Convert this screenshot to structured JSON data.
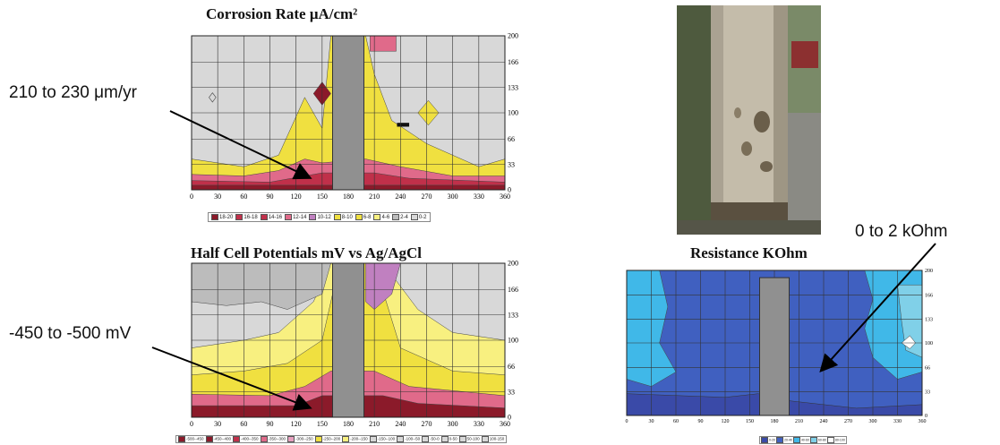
{
  "titles": {
    "corrosion": "Corrosion Rate μA/cm²",
    "halfcell": "Half Cell Potentials mV vs Ag/AgCl",
    "resistance": "Resistance KOhm"
  },
  "annotations": {
    "corrosion": "210 to 230 μm/yr",
    "halfcell": "-450 to -500 mV",
    "resistance": "0 to 2 kOhm"
  },
  "photo": {
    "description": "photo-of-corroded-column"
  },
  "colors": {
    "dark_red": "#8b1a2a",
    "red": "#c0304a",
    "pink": "#e06a8a",
    "light_pink": "#e8a0c0",
    "violet": "#c080c0",
    "yellow": "#f0e040",
    "pale_yellow": "#f8f080",
    "light_gray": "#d8d8d8",
    "gray": "#bcbcbc",
    "column": "#909090",
    "blue_dark": "#3a4aa8",
    "blue_mid": "#4060c0",
    "cyan": "#40b8e8",
    "light_cyan": "#80d0e8"
  },
  "chart_data": [
    {
      "id": "corrosion",
      "type": "heatmap",
      "title": "Corrosion Rate μA/cm²",
      "x_ticks": [
        0,
        30,
        60,
        90,
        120,
        150,
        180,
        210,
        240,
        270,
        300,
        330,
        360
      ],
      "y_ticks": [
        0,
        33,
        66,
        100,
        133,
        166,
        200
      ],
      "xlim": [
        0,
        360
      ],
      "ylim": [
        0,
        200
      ],
      "legend": [
        "18-20",
        "16-18",
        "14-16",
        "12-14",
        "10-12",
        "8-10",
        "6-8",
        "4-6",
        "2-4",
        "0-2"
      ]
    },
    {
      "id": "halfcell",
      "type": "heatmap",
      "title": "Half Cell Potentials mV vs Ag/AgCl",
      "x_ticks": [
        0,
        30,
        60,
        90,
        120,
        150,
        180,
        210,
        240,
        270,
        300,
        330,
        360
      ],
      "y_ticks": [
        0,
        33,
        66,
        100,
        133,
        166,
        200
      ],
      "xlim": [
        0,
        360
      ],
      "ylim": [
        0,
        200
      ],
      "legend": [
        "-500--450",
        "-450--400",
        "-400--350",
        "-350--300",
        "-300--250",
        "-250--200",
        "-200--150",
        "-150--100",
        "-100--50",
        "-50-0",
        "0-50",
        "50-100",
        "100-150"
      ]
    },
    {
      "id": "resistance",
      "type": "heatmap",
      "title": "Resistance KOhm",
      "x_ticks": [
        0,
        30,
        60,
        90,
        120,
        150,
        180,
        210,
        240,
        270,
        300,
        330,
        360
      ],
      "y_ticks": [
        0,
        33,
        66,
        100,
        133,
        166,
        200
      ],
      "xlim": [
        0,
        360
      ],
      "ylim": [
        0,
        200
      ],
      "legend": [
        "0-20",
        "20-40",
        "40-60",
        "60-80",
        "80-100"
      ]
    }
  ]
}
